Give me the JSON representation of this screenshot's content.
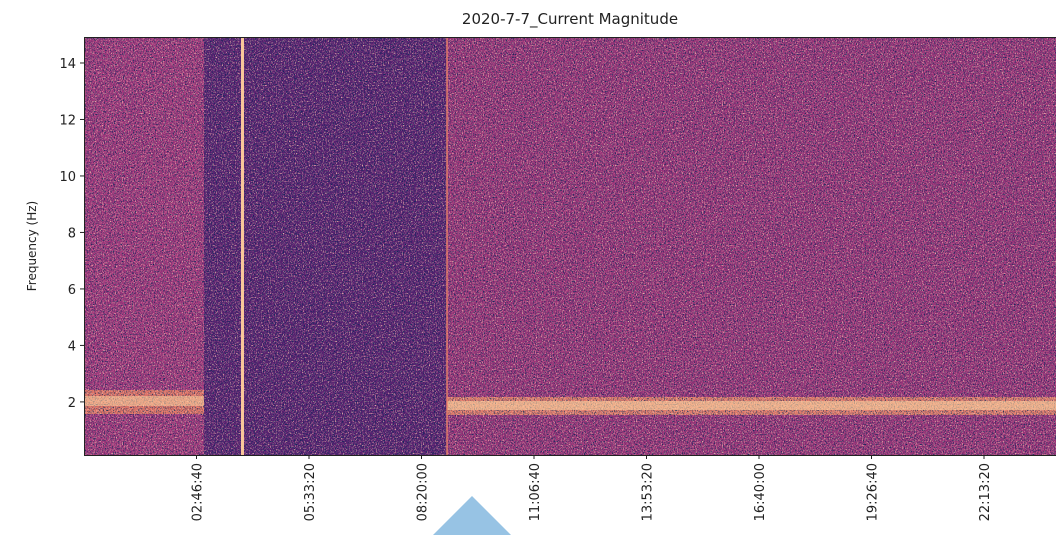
{
  "chart_data": {
    "type": "spectrogram",
    "title": "2020-7-7_Current Magnitude",
    "y_label": "Frequency (Hz)",
    "xlim": [
      0,
      86400
    ],
    "ylim": [
      0.12,
      14.92
    ],
    "xticks": [
      {
        "value": 10000,
        "label": "02:46:40"
      },
      {
        "value": 20000,
        "label": "05:33:20"
      },
      {
        "value": 30000,
        "label": "08:20:00"
      },
      {
        "value": 40000,
        "label": "11:06:40"
      },
      {
        "value": 50000,
        "label": "13:53:20"
      },
      {
        "value": 60000,
        "label": "16:40:00"
      },
      {
        "value": 70000,
        "label": "19:26:40"
      },
      {
        "value": 80000,
        "label": "22:13:20"
      }
    ],
    "yticks": [
      2,
      4,
      6,
      8,
      10,
      12,
      14
    ]
  }
}
